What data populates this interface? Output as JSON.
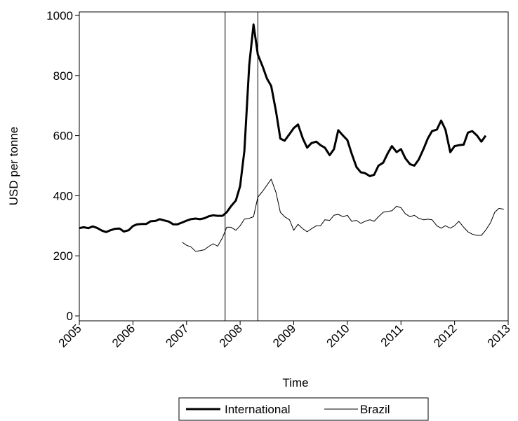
{
  "chart_data": {
    "type": "line",
    "title": "",
    "xlabel": "Time",
    "ylabel": "USD per tonne",
    "xlim": [
      2005.0,
      2013.0
    ],
    "ylim": [
      0,
      1000
    ],
    "x_ticks": [
      2005,
      2006,
      2007,
      2008,
      2009,
      2010,
      2011,
      2012,
      2013
    ],
    "x_tick_labels": [
      "2005",
      "2006",
      "2007",
      "2008",
      "2009",
      "2010",
      "2011",
      "2012",
      "2013"
    ],
    "y_ticks": [
      0,
      200,
      400,
      600,
      800,
      1000
    ],
    "y_tick_labels": [
      "0",
      "200",
      "400",
      "600",
      "800",
      "1000"
    ],
    "vertical_lines": [
      2007.72,
      2008.33
    ],
    "grid": false,
    "legend": {
      "position": "bottom",
      "entries": [
        "International",
        "Brazil"
      ]
    },
    "series": [
      {
        "name": "International",
        "style": "thick",
        "x": [
          2005.0,
          2005.08,
          2005.17,
          2005.25,
          2005.33,
          2005.42,
          2005.5,
          2005.58,
          2005.67,
          2005.75,
          2005.83,
          2005.92,
          2006.0,
          2006.08,
          2006.17,
          2006.25,
          2006.33,
          2006.42,
          2006.5,
          2006.58,
          2006.67,
          2006.75,
          2006.83,
          2006.92,
          2007.0,
          2007.08,
          2007.17,
          2007.25,
          2007.33,
          2007.42,
          2007.5,
          2007.58,
          2007.67,
          2007.75,
          2007.83,
          2007.92,
          2008.0,
          2008.08,
          2008.17,
          2008.25,
          2008.33,
          2008.42,
          2008.5,
          2008.58,
          2008.67,
          2008.75,
          2008.83,
          2008.92,
          2009.0,
          2009.08,
          2009.17,
          2009.25,
          2009.33,
          2009.42,
          2009.5,
          2009.58,
          2009.67,
          2009.75,
          2009.83,
          2009.92,
          2010.0,
          2010.08,
          2010.17,
          2010.25,
          2010.33,
          2010.42,
          2010.5,
          2010.58,
          2010.67,
          2010.75,
          2010.83,
          2010.92,
          2011.0,
          2011.08,
          2011.17,
          2011.25,
          2011.33,
          2011.42,
          2011.5,
          2011.58,
          2011.67,
          2011.75,
          2011.83,
          2011.92,
          2012.0,
          2012.08,
          2012.17,
          2012.25,
          2012.33,
          2012.42,
          2012.5,
          2012.58,
          2012.67
        ],
        "values": [
          292,
          295,
          292,
          298,
          293,
          284,
          279,
          285,
          290,
          291,
          281,
          285,
          299,
          305,
          306,
          306,
          315,
          316,
          322,
          318,
          314,
          305,
          305,
          311,
          317,
          322,
          324,
          322,
          325,
          332,
          335,
          333,
          333,
          345,
          365,
          384,
          432,
          550,
          835,
          970,
          870,
          830,
          790,
          765,
          680,
          590,
          583,
          605,
          625,
          637,
          590,
          560,
          575,
          580,
          568,
          560,
          535,
          555,
          618,
          600,
          585,
          540,
          495,
          478,
          475,
          465,
          470,
          500,
          510,
          540,
          565,
          545,
          555,
          525,
          505,
          500,
          520,
          555,
          590,
          615,
          620,
          650,
          620,
          545,
          565,
          568,
          570,
          610,
          615,
          600,
          580,
          600,
          null
        ],
        "values_note": ""
      },
      {
        "name": "Brazil",
        "style": "thin",
        "x": [
          2006.92,
          2007.0,
          2007.08,
          2007.17,
          2007.25,
          2007.33,
          2007.42,
          2007.5,
          2007.58,
          2007.67,
          2007.75,
          2007.83,
          2007.92,
          2008.0,
          2008.08,
          2008.17,
          2008.25,
          2008.33,
          2008.42,
          2008.5,
          2008.58,
          2008.67,
          2008.75,
          2008.83,
          2008.92,
          2009.0,
          2009.08,
          2009.17,
          2009.25,
          2009.33,
          2009.42,
          2009.5,
          2009.58,
          2009.67,
          2009.75,
          2009.83,
          2009.92,
          2010.0,
          2010.08,
          2010.17,
          2010.25,
          2010.33,
          2010.42,
          2010.5,
          2010.58,
          2010.67,
          2010.75,
          2010.83,
          2010.92,
          2011.0,
          2011.08,
          2011.17,
          2011.25,
          2011.33,
          2011.42,
          2011.5,
          2011.58,
          2011.67,
          2011.75,
          2011.83,
          2011.92,
          2012.0,
          2012.08,
          2012.17,
          2012.25,
          2012.33,
          2012.42,
          2012.5,
          2012.58,
          2012.67,
          2012.75,
          2012.83,
          2012.92,
          2013.0
        ],
        "values": [
          245,
          235,
          230,
          215,
          217,
          220,
          232,
          240,
          232,
          260,
          295,
          295,
          285,
          300,
          322,
          325,
          330,
          395,
          415,
          435,
          455,
          410,
          345,
          330,
          320,
          285,
          305,
          290,
          280,
          290,
          300,
          300,
          320,
          318,
          335,
          338,
          330,
          335,
          315,
          318,
          308,
          315,
          320,
          315,
          330,
          345,
          348,
          350,
          365,
          360,
          340,
          330,
          335,
          325,
          320,
          322,
          320,
          300,
          292,
          300,
          292,
          300,
          315,
          295,
          280,
          272,
          268,
          268,
          285,
          310,
          345,
          358,
          355,
          null
        ]
      }
    ]
  }
}
